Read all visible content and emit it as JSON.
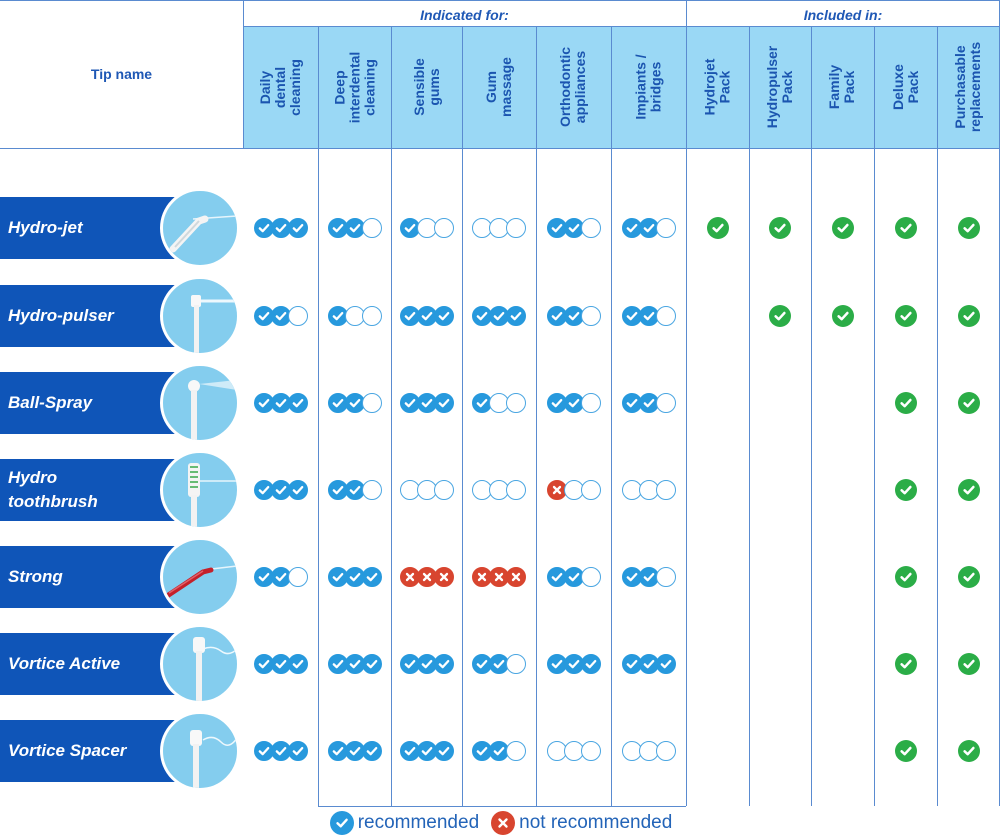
{
  "header": {
    "tip_name": "Tip name",
    "indicated_for": "Indicated for:",
    "included_in": "Included in:"
  },
  "columns": [
    {
      "label": "Daily\ndental\ncleaning",
      "name": "daily-dental-cleaning"
    },
    {
      "label": "Deep\ninterdental\ncleaning",
      "name": "deep-interdental-cleaning"
    },
    {
      "label": "Sensible\ngums",
      "name": "sensible-gums"
    },
    {
      "label": "Gum\nmassage",
      "name": "gum-massage"
    },
    {
      "label": "Orthodontic\nappliances",
      "name": "orthodontic-appliances"
    },
    {
      "label": "Impiants /\nbridges",
      "name": "impiants-bridges"
    },
    {
      "label": "Hydrojet\nPack",
      "name": "hydrojet-pack"
    },
    {
      "label": "Hydropulser\nPack",
      "name": "hydropulser-pack"
    },
    {
      "label": "Family\nPack",
      "name": "family-pack"
    },
    {
      "label": "Deluxe\nPack",
      "name": "deluxe-pack"
    },
    {
      "label": "Purchasable\nreplacements",
      "name": "purchasable-replacements"
    }
  ],
  "tips": [
    {
      "name": "Hydro-jet",
      "icon": "angled-jet-tip-icon",
      "ratings": [
        "ccc",
        "cce",
        "cee",
        "eee",
        "cce",
        "cce"
      ],
      "included": [
        true,
        true,
        true,
        true,
        true
      ]
    },
    {
      "name": "Hydro-pulser",
      "icon": "pulser-tip-icon",
      "ratings": [
        "cce",
        "cee",
        "ccc",
        "ccc",
        "cce",
        "cce"
      ],
      "included": [
        false,
        true,
        true,
        true,
        true
      ]
    },
    {
      "name": "Ball-Spray",
      "icon": "ball-spray-tip-icon",
      "ratings": [
        "ccc",
        "cce",
        "ccc",
        "cee",
        "cce",
        "cce"
      ],
      "included": [
        false,
        false,
        false,
        true,
        true
      ]
    },
    {
      "name": "Hydro\ntoothbrush",
      "icon": "toothbrush-tip-icon",
      "ratings": [
        "ccc",
        "cce",
        "eee",
        "eee",
        "xee",
        "eee"
      ],
      "included": [
        false,
        false,
        false,
        true,
        true
      ]
    },
    {
      "name": "Strong",
      "icon": "strong-tip-icon",
      "ratings": [
        "cce",
        "ccc",
        "xxx",
        "xxx",
        "cce",
        "cce"
      ],
      "included": [
        false,
        false,
        false,
        true,
        true
      ]
    },
    {
      "name": "Vortice Active",
      "icon": "vortice-active-tip-icon",
      "ratings": [
        "ccc",
        "ccc",
        "ccc",
        "cce",
        "ccc",
        "ccc"
      ],
      "included": [
        false,
        false,
        false,
        true,
        true
      ]
    },
    {
      "name": "Vortice Spacer",
      "icon": "vortice-spacer-tip-icon",
      "ratings": [
        "ccc",
        "ccc",
        "ccc",
        "cce",
        "eee",
        "eee"
      ],
      "included": [
        false,
        false,
        false,
        true,
        true
      ]
    }
  ],
  "legend": {
    "recommended": "recommended",
    "not_recommended": "not recommended",
    "recommended_icon": "check-circle-icon",
    "not_recommended_icon": "cross-circle-icon"
  },
  "colors": {
    "header_fill": "#9ad8f5",
    "banner": "#0f55b8",
    "check": "#2799dd",
    "cross": "#d8452f",
    "included": "#2bad47",
    "text": "#1f58b5"
  }
}
